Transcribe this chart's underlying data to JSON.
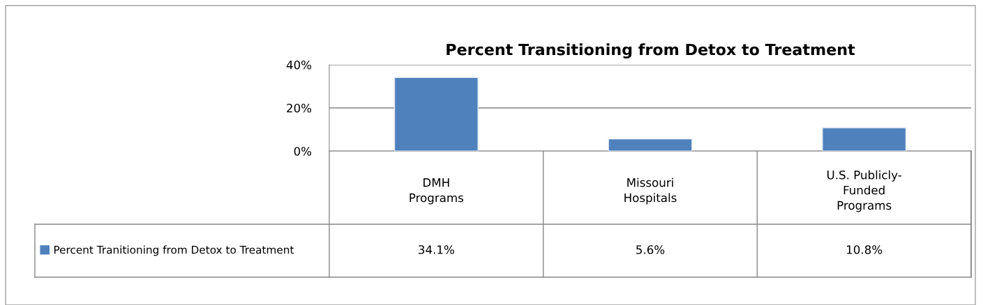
{
  "chart_data": {
    "type": "bar",
    "title": "Percent Transitioning from Detox to Treatment",
    "categories": [
      "DMH\nPrograms",
      "Missouri\nHospitals",
      "U.S. Publicly-\nFunded\nPrograms"
    ],
    "series": [
      {
        "name": "Percent Tranitioning from Detox to Treatment",
        "color": "#4f81bd",
        "values": [
          34.1,
          5.6,
          10.8
        ],
        "value_labels": [
          "34.1%",
          "5.6%",
          "10.8%"
        ]
      }
    ],
    "ylim": [
      0,
      40
    ],
    "yticks": [
      {
        "value": 0,
        "label": "0%"
      },
      {
        "value": 20,
        "label": "20%"
      },
      {
        "value": 40,
        "label": "40%"
      }
    ],
    "grid": "y",
    "legend": "bottom left"
  }
}
